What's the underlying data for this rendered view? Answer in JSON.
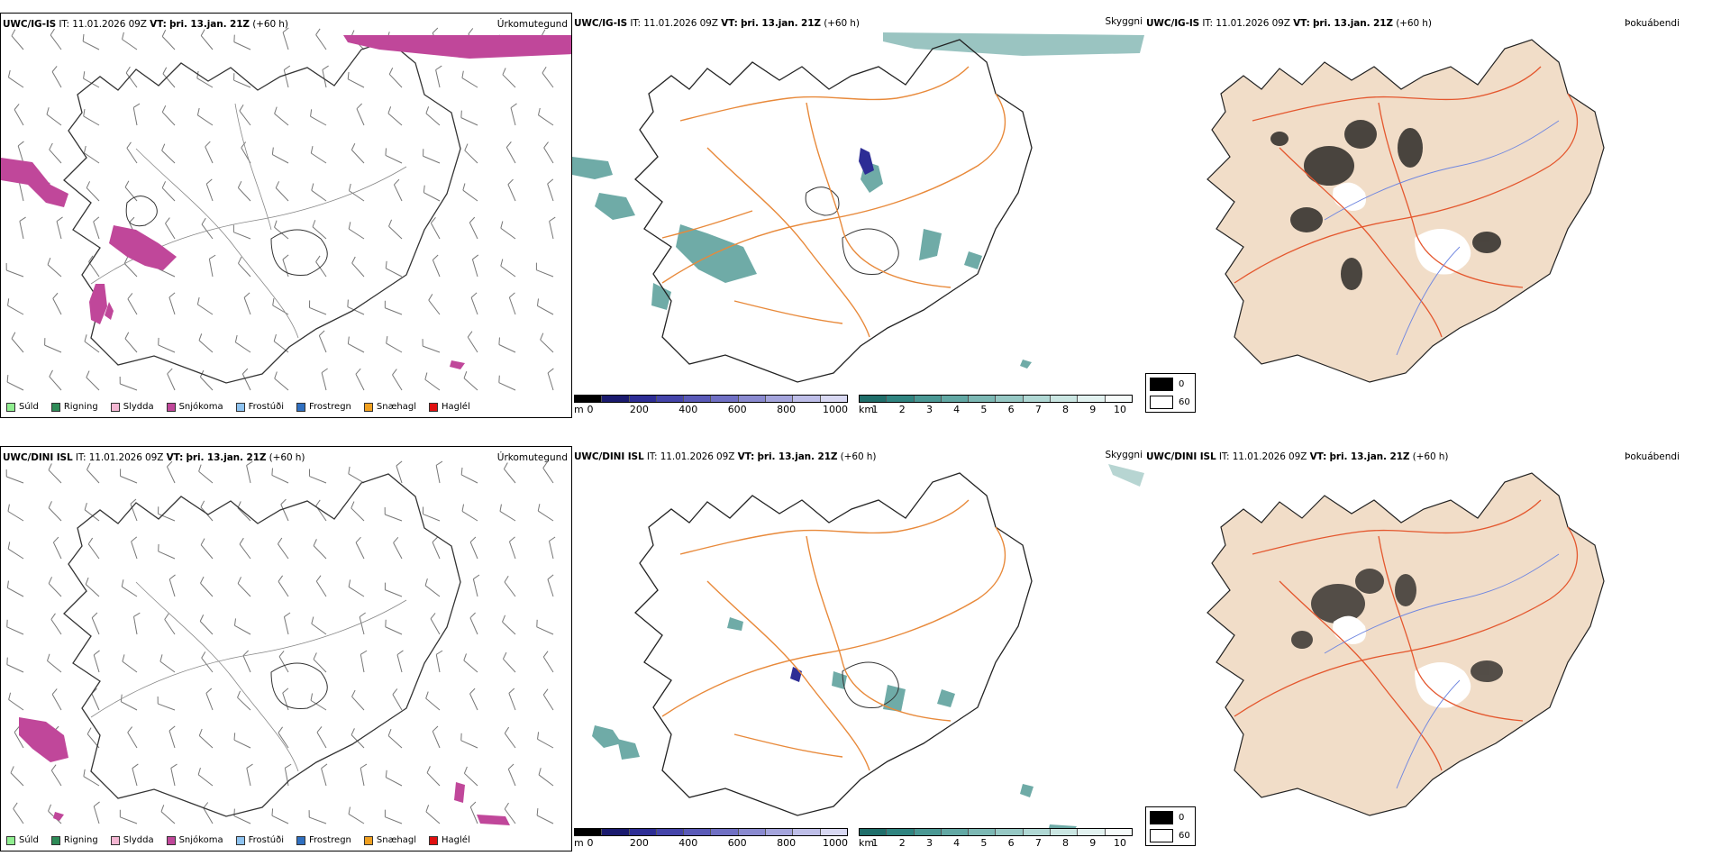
{
  "rows": [
    {
      "model": "UWC/IG-IS",
      "it_label": "IT:",
      "it_value": "11.01.2026 09Z",
      "vt_label": "VT:",
      "vt_value": "þri. 13.jan. 21Z",
      "lead": "(+60 h)"
    },
    {
      "model": "UWC/DINI ISL",
      "it_label": "IT:",
      "it_value": "11.01.2026 09Z",
      "vt_label": "VT:",
      "vt_value": "þri. 13.jan. 21Z",
      "lead": "(+60 h)"
    }
  ],
  "panels": {
    "precip_type": "Úrkomutegund",
    "visibility": "Skyggni",
    "fog": "Þokuábendi"
  },
  "precip_legend": [
    {
      "label": "Súld",
      "color": "#90ee90"
    },
    {
      "label": "Rigning",
      "color": "#2e8b57"
    },
    {
      "label": "Slydda",
      "color": "#f4b6d2"
    },
    {
      "label": "Snjókoma",
      "color": "#c0479a"
    },
    {
      "label": "Frostúði",
      "color": "#8ec3f0"
    },
    {
      "label": "Frostregn",
      "color": "#2f6fc0"
    },
    {
      "label": "Snæhagl",
      "color": "#f0a020"
    },
    {
      "label": "Haglél",
      "color": "#e01010"
    }
  ],
  "height_scale": {
    "unit": "m",
    "ticks": [
      "0",
      "200",
      "400",
      "600",
      "800",
      "1000"
    ],
    "colors": [
      "#000000",
      "#1a1a6e",
      "#2d2d95",
      "#4444aa",
      "#5a5ab8",
      "#7070c4",
      "#8a8ad0",
      "#a4a4dc",
      "#bebee8",
      "#d8d8f2"
    ]
  },
  "visibility_scale": {
    "unit": "km",
    "ticks": [
      "1",
      "2",
      "3",
      "4",
      "5",
      "6",
      "7",
      "8",
      "9",
      "10"
    ],
    "colors": [
      "#1f6e6a",
      "#2f8480",
      "#4a9894",
      "#62a8a4",
      "#7cb8b4",
      "#96c8c4",
      "#b0d8d4",
      "#cae6e2",
      "#e2f2f0",
      "#f6fbfa"
    ]
  },
  "fog_legend": [
    {
      "label": "0",
      "color": "#000000"
    },
    {
      "label": "60",
      "color": "#ffffff"
    }
  ],
  "colors": {
    "snow": "#c0479a",
    "vis_teal": "#3f8f8a",
    "roads": "#e8893a",
    "fog_land": "#f1ddc8",
    "fog_roads": "#e4572e",
    "rivers": "#6f86e0"
  }
}
